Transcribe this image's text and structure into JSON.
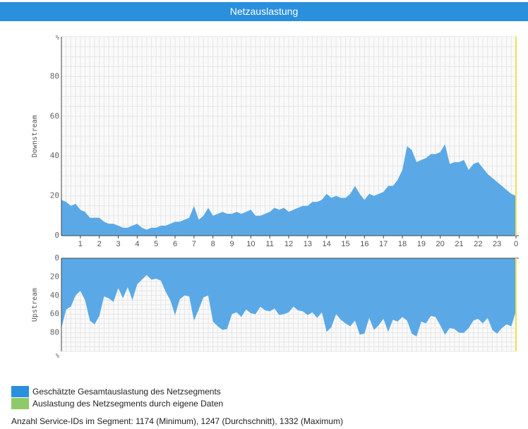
{
  "header": {
    "title": "Netzauslastung"
  },
  "colors": {
    "total": "#5aa9e6",
    "legend_total": "#2a8fdc",
    "legend_own": "#8fca69",
    "now_marker": "#f0e050",
    "grid": "#e6e6e6",
    "axis": "#444444"
  },
  "chart_data": [
    {
      "type": "area",
      "name": "downstream",
      "ylabel": "Downstream",
      "unit_label": "%",
      "ylim": [
        0,
        100
      ],
      "yticks": [
        0,
        20,
        40,
        60,
        80
      ],
      "xlim": [
        0,
        24
      ],
      "xticks": [
        1,
        2,
        3,
        4,
        5,
        6,
        7,
        8,
        9,
        10,
        11,
        12,
        13,
        14,
        15,
        16,
        17,
        18,
        19,
        20,
        21,
        22,
        23,
        0
      ],
      "x": [
        0,
        0.25,
        0.5,
        0.75,
        1,
        1.25,
        1.5,
        1.75,
        2,
        2.25,
        2.5,
        2.75,
        3,
        3.25,
        3.5,
        3.75,
        4,
        4.25,
        4.5,
        4.75,
        5,
        5.25,
        5.5,
        5.75,
        6,
        6.25,
        6.5,
        6.75,
        7,
        7.25,
        7.5,
        7.75,
        8,
        8.25,
        8.5,
        8.75,
        9,
        9.25,
        9.5,
        9.75,
        10,
        10.25,
        10.5,
        10.75,
        11,
        11.25,
        11.5,
        11.75,
        12,
        12.25,
        12.5,
        12.75,
        13,
        13.25,
        13.5,
        13.75,
        14,
        14.25,
        14.5,
        14.75,
        15,
        15.25,
        15.5,
        15.75,
        16,
        16.25,
        16.5,
        16.75,
        17,
        17.25,
        17.5,
        17.75,
        18,
        18.25,
        18.5,
        18.75,
        19,
        19.25,
        19.5,
        19.75,
        20,
        20.25,
        20.5,
        20.75,
        21,
        21.25,
        21.5,
        21.75,
        22,
        22.25,
        22.5,
        22.75,
        23,
        23.25,
        23.5,
        23.75,
        24
      ],
      "values": [
        18,
        17,
        15,
        16,
        13,
        12,
        9,
        9,
        9,
        7,
        6,
        6,
        5,
        4,
        4,
        5,
        6,
        4,
        3,
        4,
        4,
        5,
        5,
        6,
        7,
        7,
        8,
        9,
        15,
        8,
        10,
        14,
        10,
        11,
        12,
        11,
        11,
        12,
        11,
        12,
        13,
        10,
        10,
        11,
        12,
        14,
        13,
        14,
        12,
        13,
        14,
        15,
        15,
        17,
        17,
        18,
        21,
        19,
        20,
        19,
        19,
        21,
        25,
        21,
        18,
        21,
        20,
        21,
        22,
        25,
        25,
        28,
        33,
        45,
        43,
        37,
        38,
        39,
        41,
        41,
        42,
        46,
        36,
        37,
        37,
        38,
        33,
        36,
        37,
        34,
        31,
        29,
        27,
        25,
        23,
        21,
        20
      ],
      "now_marker_x": 24
    },
    {
      "type": "area",
      "name": "upstream",
      "ylabel": "Upstream",
      "unit_label": "%",
      "ylim": [
        0,
        100
      ],
      "yticks": [
        0,
        20,
        40,
        60,
        80
      ],
      "inverted": true,
      "xlim": [
        0,
        24
      ],
      "x": [
        0,
        0.25,
        0.5,
        0.75,
        1,
        1.25,
        1.5,
        1.75,
        2,
        2.25,
        2.5,
        2.75,
        3,
        3.25,
        3.5,
        3.75,
        4,
        4.25,
        4.5,
        4.75,
        5,
        5.25,
        5.5,
        5.75,
        6,
        6.25,
        6.5,
        6.75,
        7,
        7.25,
        7.5,
        7.75,
        8,
        8.25,
        8.5,
        8.75,
        9,
        9.25,
        9.5,
        9.75,
        10,
        10.25,
        10.5,
        10.75,
        11,
        11.25,
        11.5,
        11.75,
        12,
        12.25,
        12.5,
        12.75,
        13,
        13.25,
        13.5,
        13.75,
        14,
        14.25,
        14.5,
        14.75,
        15,
        15.25,
        15.5,
        15.75,
        16,
        16.25,
        16.5,
        16.75,
        17,
        17.25,
        17.5,
        17.75,
        18,
        18.25,
        18.5,
        18.75,
        19,
        19.25,
        19.5,
        19.75,
        20,
        20.25,
        20.5,
        20.75,
        21,
        21.25,
        21.5,
        21.75,
        22,
        22.25,
        22.5,
        22.75,
        23,
        23.25,
        23.5,
        23.75,
        24
      ],
      "values": [
        75,
        55,
        52,
        40,
        35,
        45,
        67,
        71,
        62,
        41,
        43,
        47,
        32,
        43,
        31,
        45,
        28,
        23,
        18,
        23,
        22,
        24,
        36,
        45,
        61,
        44,
        40,
        41,
        67,
        55,
        42,
        40,
        68,
        73,
        77,
        76,
        60,
        58,
        63,
        55,
        59,
        60,
        52,
        56,
        57,
        54,
        61,
        60,
        58,
        52,
        56,
        57,
        61,
        58,
        64,
        58,
        79,
        74,
        60,
        66,
        70,
        73,
        67,
        82,
        81,
        64,
        77,
        72,
        65,
        79,
        66,
        68,
        63,
        67,
        81,
        84,
        68,
        70,
        62,
        63,
        72,
        82,
        75,
        76,
        80,
        80,
        75,
        67,
        65,
        70,
        64,
        77,
        81,
        75,
        71,
        73,
        57
      ]
    }
  ],
  "legend": [
    {
      "label": "Geschätzte Gesamtauslastung des Netzsegments"
    },
    {
      "label": "Auslastung des Netzsegments durch eigene Daten"
    }
  ],
  "footer": {
    "service_ids_text": "Anzahl Service-IDs im Segment: 1174 (Minimum), 1247 (Durchschnitt), 1332 (Maximum)"
  }
}
